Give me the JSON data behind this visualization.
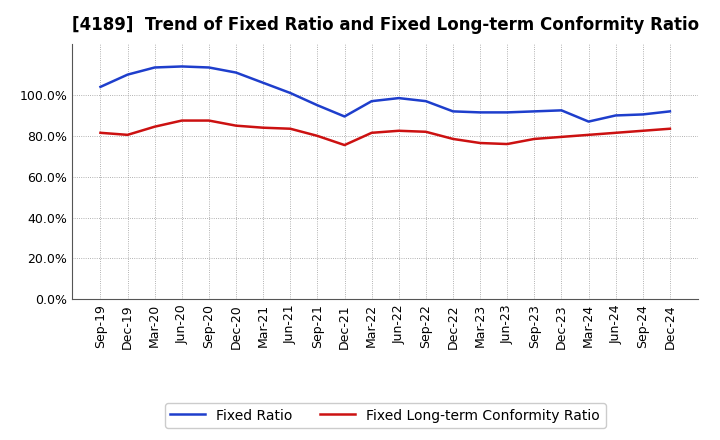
{
  "title": "[4189]  Trend of Fixed Ratio and Fixed Long-term Conformity Ratio",
  "x_labels": [
    "Sep-19",
    "Dec-19",
    "Mar-20",
    "Jun-20",
    "Sep-20",
    "Dec-20",
    "Mar-21",
    "Jun-21",
    "Sep-21",
    "Dec-21",
    "Mar-22",
    "Jun-22",
    "Sep-22",
    "Dec-22",
    "Mar-23",
    "Jun-23",
    "Sep-23",
    "Dec-23",
    "Mar-24",
    "Jun-24",
    "Sep-24",
    "Dec-24"
  ],
  "fixed_ratio": [
    104.0,
    110.0,
    113.5,
    114.0,
    113.5,
    111.0,
    106.0,
    101.0,
    95.0,
    89.5,
    97.0,
    98.5,
    97.0,
    92.0,
    91.5,
    91.5,
    92.0,
    92.5,
    87.0,
    90.0,
    90.5,
    92.0
  ],
  "fixed_lt_ratio": [
    81.5,
    80.5,
    84.5,
    87.5,
    87.5,
    85.0,
    84.0,
    83.5,
    80.0,
    75.5,
    81.5,
    82.5,
    82.0,
    78.5,
    76.5,
    76.0,
    78.5,
    79.5,
    80.5,
    81.5,
    82.5,
    83.5
  ],
  "blue_color": "#1E3ECC",
  "red_color": "#CC1111",
  "ylim": [
    0,
    125
  ],
  "yticks": [
    0,
    20,
    40,
    60,
    80,
    100
  ],
  "background_color": "#ffffff",
  "grid_color": "#999999",
  "legend_fixed_ratio": "Fixed Ratio",
  "legend_fixed_lt_ratio": "Fixed Long-term Conformity Ratio",
  "title_fontsize": 12,
  "tick_fontsize": 9,
  "legend_fontsize": 10
}
